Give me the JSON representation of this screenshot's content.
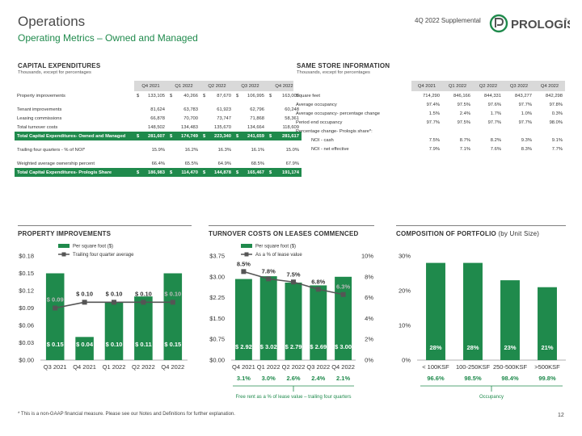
{
  "header": {
    "title": "Operations",
    "subtitle": "Operating Metrics – Owned and Managed",
    "supplemental": "4Q 2022 Supplemental",
    "logo_text": "PROLOGIS",
    "logo_mark": "®"
  },
  "capex": {
    "title": "CAPITAL EXPENDITURES",
    "subtitle": "Thousands, except for percentages",
    "quarters": [
      "Q4 2021",
      "Q1 2022",
      "Q2 2022",
      "Q3 2022",
      "Q4 2022"
    ],
    "rows": [
      {
        "label": "Property improvements",
        "dollar": true,
        "values": [
          "133,105",
          "40,266",
          "87,670",
          "106,995",
          "163,008"
        ],
        "style": "normal"
      },
      {
        "label": "",
        "values": [],
        "style": "spacer"
      },
      {
        "label": "Tenant improvements",
        "dollar": false,
        "values": [
          "81,624",
          "63,783",
          "61,923",
          "62,796",
          "60,248"
        ],
        "style": "normal"
      },
      {
        "label": "Leasing commissions",
        "dollar": false,
        "values": [
          "66,878",
          "70,700",
          "73,747",
          "71,868",
          "58,361"
        ],
        "style": "normal"
      },
      {
        "label": "Total turnover costs",
        "dollar": false,
        "values": [
          "148,502",
          "134,483",
          "135,670",
          "134,664",
          "118,609"
        ],
        "style": "normal"
      },
      {
        "label": "Total Capital Expenditures- Owned and Managed",
        "dollar": true,
        "values": [
          "281,607",
          "174,749",
          "223,340",
          "241,659",
          "281,617"
        ],
        "style": "total"
      },
      {
        "label": "",
        "values": [],
        "style": "spacer"
      },
      {
        "label": "Trailing four quarters - % of NOI*",
        "dollar": false,
        "values": [
          "15.9%",
          "16.2%",
          "16.3%",
          "16.1%",
          "15.0%"
        ],
        "style": "normal"
      },
      {
        "label": "",
        "values": [],
        "style": "spacer"
      },
      {
        "label": "Weighted average ownership percent",
        "dollar": false,
        "values": [
          "66.4%",
          "65.5%",
          "64.9%",
          "68.5%",
          "67.9%"
        ],
        "style": "normal"
      },
      {
        "label": "Total Capital Expenditures- Prologis Share",
        "dollar": true,
        "values": [
          "186,983",
          "114,470",
          "144,878",
          "165,467",
          "191,174"
        ],
        "style": "total"
      }
    ]
  },
  "samestore": {
    "title": "SAME STORE INFORMATION",
    "subtitle": "Thousands, except for percentages",
    "quarters": [
      "Q4 2021",
      "Q1 2022",
      "Q2 2022",
      "Q3 2022",
      "Q4 2022"
    ],
    "rows": [
      {
        "label": "Square feet",
        "values": [
          "714,290",
          "846,166",
          "844,331",
          "843,277",
          "842,298"
        ]
      },
      {
        "label": "Average occupancy",
        "values": [
          "97.4%",
          "97.5%",
          "97.6%",
          "97.7%",
          "97.8%"
        ]
      },
      {
        "label": "Average occupancy- percentage change",
        "values": [
          "1.5%",
          "2.4%",
          "1.7%",
          "1.0%",
          "0.3%"
        ]
      },
      {
        "label": "Period end occupancy",
        "values": [
          "97.7%",
          "97.5%",
          "97.7%",
          "97.7%",
          "98.0%"
        ]
      },
      {
        "label": "Percentage change- Prologis share*:",
        "values": [
          "",
          "",
          "",
          "",
          ""
        ]
      },
      {
        "label": "NOI - cash",
        "indent": true,
        "values": [
          "7.5%",
          "8.7%",
          "8.2%",
          "9.3%",
          "9.1%"
        ]
      },
      {
        "label": "NOI - net effective",
        "indent": true,
        "values": [
          "7.9%",
          "7.1%",
          "7.6%",
          "8.3%",
          "7.7%"
        ]
      }
    ]
  },
  "charts": {
    "property": {
      "title": "PROPERTY IMPROVEMENTS",
      "legend_bar": "Per square foot ($)",
      "legend_line": "Trailing four quarter average"
    },
    "turnover": {
      "title": "TURNOVER COSTS ON LEASES COMMENCED",
      "legend_bar": "Per square foot ($)",
      "legend_line": "As a % of lease value",
      "caption": "Free rent as a % of lease value – trailing four quarters"
    },
    "composition": {
      "title": "COMPOSITION OF PORTFOLIO",
      "title_suffix": "(by Unit Size)",
      "caption": "Occupancy"
    }
  },
  "chart_data": [
    {
      "type": "bar",
      "title": "PROPERTY IMPROVEMENTS",
      "categories": [
        "Q3 2021",
        "Q4 2021",
        "Q1 2022",
        "Q2 2022",
        "Q4 2022"
      ],
      "series": [
        {
          "name": "Per square foot ($)",
          "kind": "bar",
          "values": [
            0.15,
            0.04,
            0.1,
            0.11,
            0.15
          ],
          "labels": [
            "$ 0.15",
            "$ 0.04",
            "$ 0.10",
            "$ 0.11",
            "$ 0.15"
          ]
        },
        {
          "name": "Trailing four quarter average",
          "kind": "line",
          "values": [
            0.09,
            0.1,
            0.1,
            0.1,
            0.1
          ],
          "labels": [
            "$ 0.09",
            "$ 0.10",
            "$ 0.10",
            "$ 0.10",
            "$ 0.10"
          ]
        }
      ],
      "ylim": [
        0,
        0.18
      ],
      "yticks": [
        0,
        0.03,
        0.06,
        0.09,
        0.12,
        0.15,
        0.18
      ],
      "ytick_labels": [
        "$0.00",
        "$0.03",
        "$0.06",
        "$0.09",
        "$0.12",
        "$0.15",
        "$0.18"
      ]
    },
    {
      "type": "bar",
      "title": "TURNOVER COSTS ON LEASES COMMENCED",
      "categories": [
        "Q4 2021",
        "Q1 2022",
        "Q2 2022",
        "Q3 2022",
        "Q4 2022"
      ],
      "series": [
        {
          "name": "Per square foot ($)",
          "kind": "bar",
          "values": [
            2.92,
            3.02,
            2.79,
            2.69,
            3.0
          ],
          "labels": [
            "$ 2.92",
            "$ 3.02",
            "$ 2.79",
            "$ 2.69",
            "$ 3.00"
          ]
        },
        {
          "name": "As a % of lease value",
          "kind": "line",
          "axis": "right",
          "values": [
            8.5,
            7.8,
            7.5,
            6.8,
            6.3
          ],
          "labels": [
            "8.5%",
            "7.8%",
            "7.5%",
            "6.8%",
            "6.3%"
          ]
        }
      ],
      "ylim": [
        0,
        3.75
      ],
      "yticks": [
        0,
        0.75,
        1.5,
        2.25,
        3.0,
        3.75
      ],
      "ytick_labels": [
        "$0.00",
        "$0.75",
        "$1.50",
        "$2.25",
        "$3.00",
        "$3.75"
      ],
      "y2lim": [
        0,
        10
      ],
      "y2ticks": [
        0,
        2,
        4,
        6,
        8,
        10
      ],
      "y2tick_labels": [
        "0%",
        "2%",
        "4%",
        "6%",
        "8%",
        "10%"
      ],
      "free_rent": [
        "3.1%",
        "3.0%",
        "2.6%",
        "2.4%",
        "2.1%"
      ]
    },
    {
      "type": "bar",
      "title": "COMPOSITION OF PORTFOLIO (by Unit Size)",
      "categories": [
        "< 100KSF",
        "100-250KSF",
        "250-500KSF",
        ">500KSF"
      ],
      "series": [
        {
          "name": "Composition",
          "kind": "bar",
          "values": [
            28,
            28,
            23,
            21
          ],
          "labels": [
            "28%",
            "28%",
            "23%",
            "21%"
          ]
        }
      ],
      "ylim": [
        0,
        30
      ],
      "yticks": [
        0,
        10,
        20,
        30
      ],
      "ytick_labels": [
        "0%",
        "10%",
        "20%",
        "30%"
      ],
      "occupancy": [
        "96.6%",
        "98.5%",
        "98.4%",
        "99.8%"
      ]
    }
  ],
  "footnote": "* This is a non-GAAP financial measure. Please see our Notes and Definitions for further explanation.",
  "page_number": "12",
  "colors": {
    "green": "#1f8a4c",
    "dark_gray": "#555555",
    "header_gray": "#d9d9d9"
  }
}
